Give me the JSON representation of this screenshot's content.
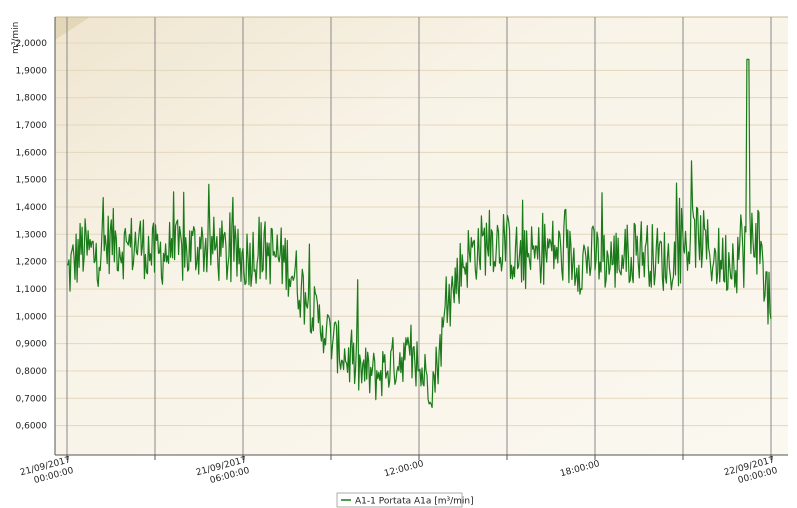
{
  "chart_data": {
    "type": "line",
    "title": "",
    "ylabel": "m³/min",
    "ylim": [
      0.55,
      2.05
    ],
    "y_ticks": [
      "2,0000",
      "1,9000",
      "1,8000",
      "1,7000",
      "1,6000",
      "1,5000",
      "1,4000",
      "1,3000",
      "1,2000",
      "1,1000",
      "1,0000",
      "0,9000",
      "0,8000",
      "0,7000",
      "0,6000"
    ],
    "x_ticks": [
      {
        "hour": 0,
        "lines": [
          "21/09/2017",
          "00:00:00"
        ]
      },
      {
        "hour": 6,
        "lines": [
          "21/09/2017",
          "06:00:00"
        ]
      },
      {
        "hour": 12,
        "lines": [
          "12:00:00"
        ]
      },
      {
        "hour": 18,
        "lines": [
          "18:00:00"
        ]
      },
      {
        "hour": 24,
        "lines": [
          "22/09/2017",
          "00:00:00"
        ]
      }
    ],
    "grid": true,
    "legend_position": "bottom-center",
    "series": [
      {
        "name": "A1-1 Portata A1a [m³/min]",
        "color": "#1a7a1a",
        "x_unit": "hours",
        "points": [
          [
            0.0,
            1.15
          ],
          [
            0.5,
            1.25
          ],
          [
            1.0,
            1.22
          ],
          [
            1.5,
            1.28
          ],
          [
            2.0,
            1.25
          ],
          [
            2.5,
            1.27
          ],
          [
            3.0,
            1.22
          ],
          [
            3.5,
            1.24
          ],
          [
            4.0,
            1.23
          ],
          [
            4.5,
            1.26
          ],
          [
            5.0,
            1.25
          ],
          [
            5.5,
            1.22
          ],
          [
            6.0,
            1.21
          ],
          [
            6.5,
            1.24
          ],
          [
            7.0,
            1.23
          ],
          [
            7.5,
            1.2
          ],
          [
            8.0,
            1.1
          ],
          [
            8.5,
            1.0
          ],
          [
            9.0,
            0.92
          ],
          [
            9.5,
            0.85
          ],
          [
            10.0,
            0.8
          ],
          [
            10.5,
            0.78
          ],
          [
            11.0,
            0.82
          ],
          [
            11.5,
            0.86
          ],
          [
            12.0,
            0.8
          ],
          [
            12.5,
            0.76
          ],
          [
            13.0,
            1.05
          ],
          [
            13.5,
            1.2
          ],
          [
            14.0,
            1.25
          ],
          [
            14.5,
            1.28
          ],
          [
            15.0,
            1.26
          ],
          [
            15.5,
            1.2
          ],
          [
            16.0,
            1.22
          ],
          [
            16.5,
            1.25
          ],
          [
            17.0,
            1.22
          ],
          [
            17.5,
            1.2
          ],
          [
            18.0,
            1.22
          ],
          [
            18.5,
            1.2
          ],
          [
            19.0,
            1.22
          ],
          [
            19.5,
            1.25
          ],
          [
            20.0,
            1.22
          ],
          [
            20.5,
            1.2
          ],
          [
            21.0,
            1.24
          ],
          [
            21.5,
            1.3
          ],
          [
            22.0,
            1.22
          ],
          [
            22.5,
            1.2
          ],
          [
            23.0,
            1.25
          ],
          [
            23.5,
            1.32
          ],
          [
            24.0,
            1.0
          ]
        ]
      }
    ]
  }
}
